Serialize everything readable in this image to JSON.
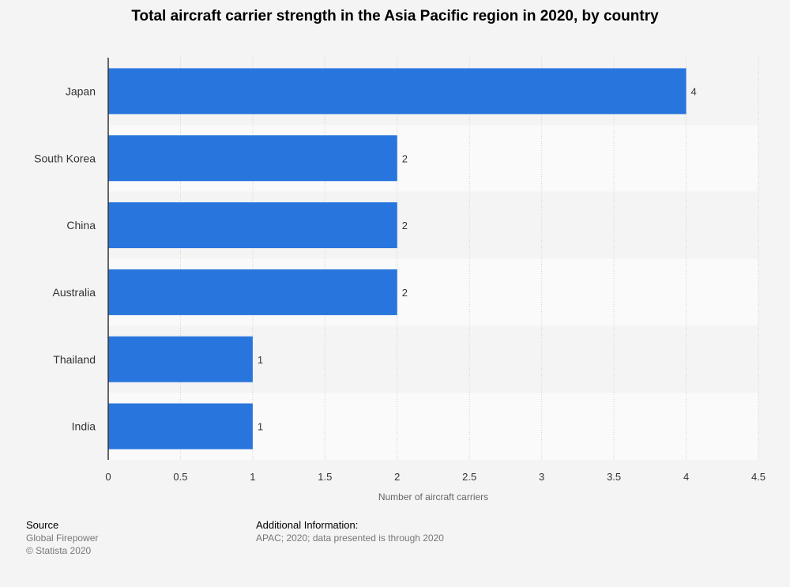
{
  "chart_data": {
    "type": "bar",
    "orientation": "horizontal",
    "title": "Total aircraft carrier strength in the Asia Pacific region in 2020, by country",
    "categories": [
      "Japan",
      "South Korea",
      "China",
      "Australia",
      "Thailand",
      "India"
    ],
    "values": [
      4,
      2,
      2,
      2,
      1,
      1
    ],
    "xlabel": "Number of aircraft carriers",
    "ylabel": "",
    "xlim": [
      0,
      4.5
    ],
    "xticks": [
      "0",
      "0.5",
      "1",
      "1.5",
      "2",
      "2.5",
      "3",
      "3.5",
      "4",
      "4.5"
    ],
    "grid": true,
    "bar_color": "#2876dd"
  },
  "footer": {
    "source_heading": "Source",
    "source_name": "Global Firepower",
    "copyright": "© Statista 2020",
    "info_heading": "Additional Information:",
    "info_text": "APAC; 2020; data presented is through 2020"
  }
}
